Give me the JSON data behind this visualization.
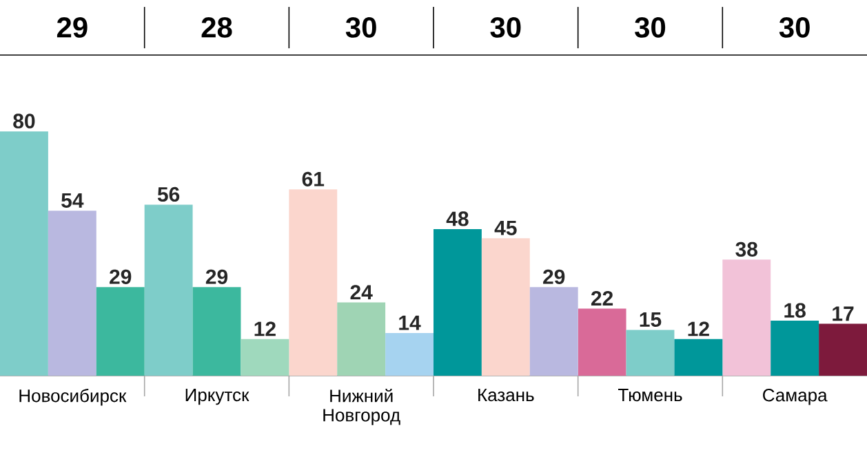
{
  "chart_data": {
    "type": "bar",
    "categories": [
      "Новосибирск",
      "Иркутск",
      "Нижний Новгород",
      "Казань",
      "Тюмень",
      "Самара"
    ],
    "series": [
      {
        "values": [
          80,
          56,
          61,
          48,
          22,
          38
        ],
        "colors": [
          "#7ecdc9",
          "#7ecdc9",
          "#fbd6cd",
          "#00979a",
          "#d96a98",
          "#f2c2d8"
        ]
      },
      {
        "values": [
          54,
          29,
          24,
          45,
          15,
          18
        ],
        "colors": [
          "#b9b8e0",
          "#3cb89e",
          "#9fd4b4",
          "#fbd6cd",
          "#7ecdc9",
          "#00979a"
        ]
      },
      {
        "values": [
          29,
          12,
          14,
          29,
          12,
          17
        ],
        "colors": [
          "#3cb89e",
          "#9fd9bd",
          "#a6d3f0",
          "#b9b8e0",
          "#00979a",
          "#7d1a3c"
        ]
      }
    ],
    "data_labels": true,
    "annotations": [
      "29",
      "28",
      "30",
      "30",
      "30",
      "30"
    ]
  }
}
